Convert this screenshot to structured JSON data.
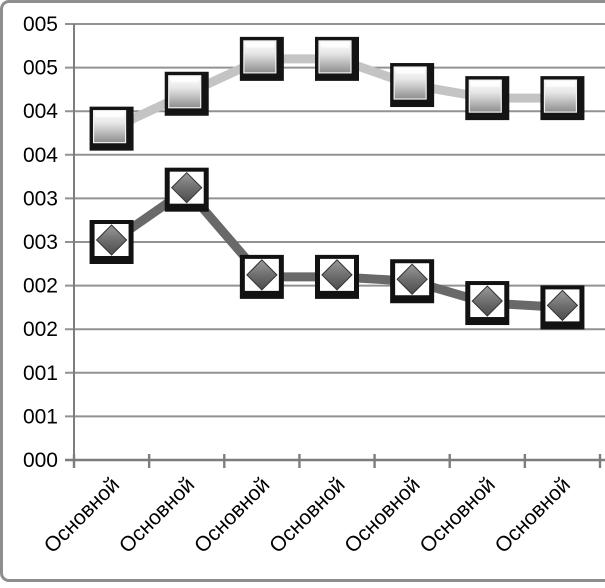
{
  "window": {
    "background_color": "#ffffff",
    "frame_color": "#8e8e8e"
  },
  "chart_data": {
    "type": "line",
    "title": "",
    "legend": "none",
    "grid": true,
    "categories": [
      "Основной",
      "Основной",
      "Основной",
      "Основной",
      "Основной",
      "Основной",
      "Основной"
    ],
    "series": [
      {
        "name": "square-marker-series",
        "marker": "square",
        "values": [
          3.8,
          4.2,
          4.6,
          4.6,
          4.3,
          4.15,
          4.15
        ],
        "line_color": "#c4c4c4"
      },
      {
        "name": "diamond-marker-series",
        "marker": "diamond",
        "values": [
          2.5,
          3.1,
          2.1,
          2.1,
          2.05,
          1.8,
          1.75
        ],
        "line_color": "#696969"
      }
    ],
    "y_axis": {
      "min": 0,
      "max": 5,
      "step": 0.5,
      "tick_labels_top_to_bottom": [
        "005",
        "005",
        "004",
        "004",
        "003",
        "003",
        "002",
        "002",
        "001",
        "001",
        "000"
      ]
    },
    "x_axis": {
      "label_rotation_deg": -45
    },
    "axis_color": "#7d7d7d",
    "gridline_color": "#929292"
  }
}
